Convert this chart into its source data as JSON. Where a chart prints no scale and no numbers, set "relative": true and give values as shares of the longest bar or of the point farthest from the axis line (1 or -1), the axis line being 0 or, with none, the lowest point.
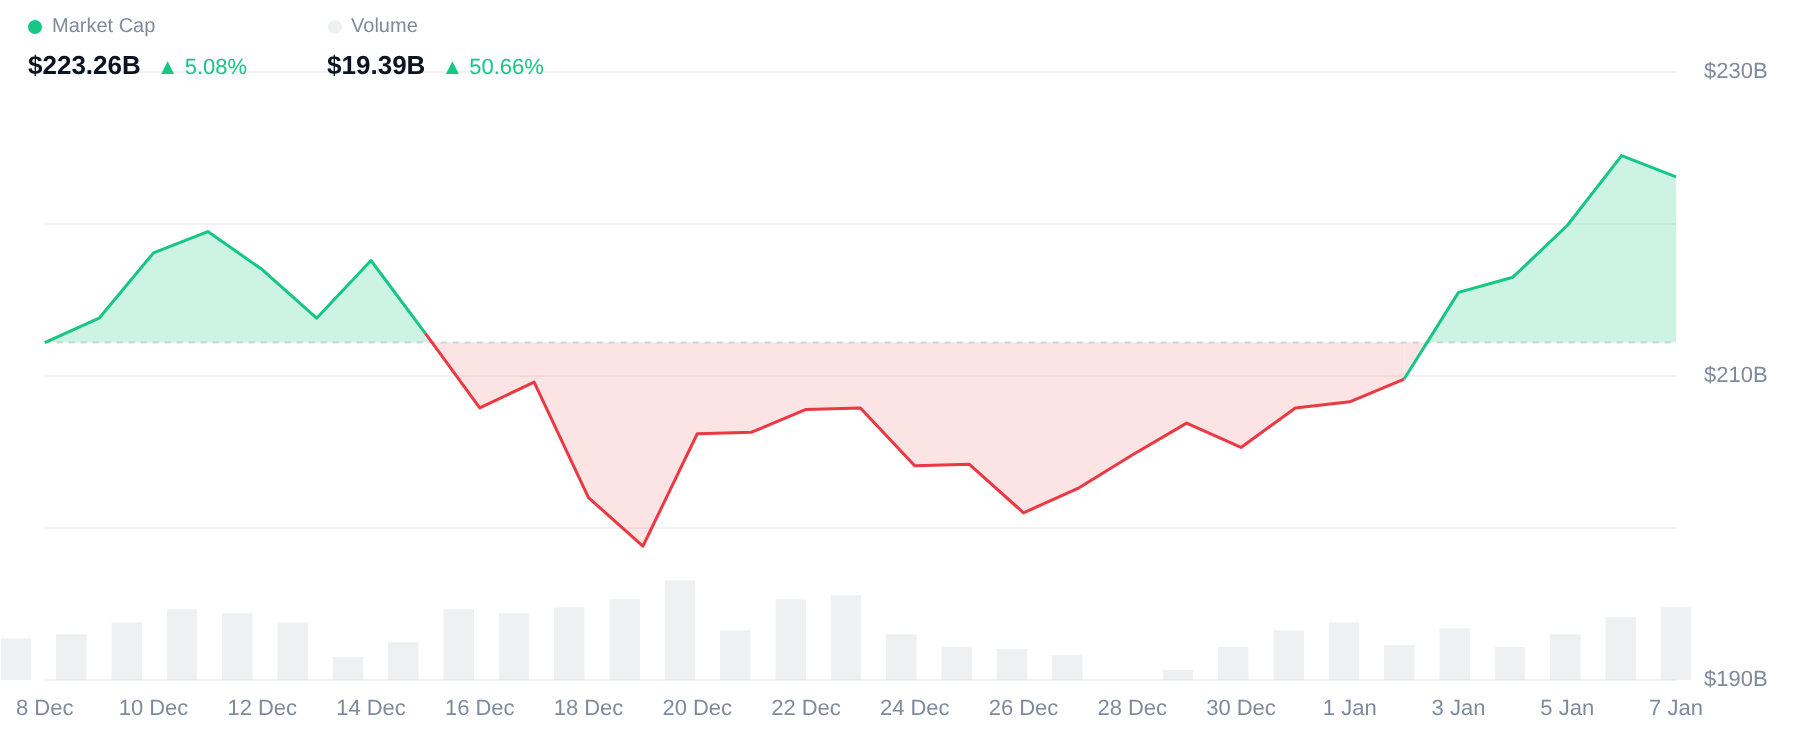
{
  "chart_data": [
    {
      "type": "area",
      "categories": [
        "8 Dec",
        null,
        "10 Dec",
        null,
        "12 Dec",
        null,
        "14 Dec",
        null,
        "16 Dec",
        null,
        "18 Dec",
        null,
        "20 Dec",
        null,
        "22 Dec",
        null,
        "24 Dec",
        null,
        "26 Dec",
        null,
        "28 Dec",
        null,
        "30 Dec",
        null,
        "1 Jan",
        null,
        "3 Jan",
        null,
        "5 Jan",
        null,
        "7 Jan"
      ],
      "series": [
        {
          "name": "Market Cap",
          "color": "#16c784",
          "colors": [
            "#16c784",
            "#16c784",
            "#16c784",
            "#16c784",
            "#16c784",
            "#16c784",
            "#16c784",
            "#16c784",
            "#ea3943",
            "#ea3943",
            "#ea3943",
            "#ea3943",
            "#ea3943",
            "#ea3943",
            "#ea3943",
            "#ea3943",
            "#ea3943",
            "#ea3943",
            "#ea3943",
            "#ea3943",
            "#ea3943",
            "#ea3943",
            "#ea3943",
            "#ea3943",
            "#ea3943",
            "#ea3943",
            "#16c784",
            "#16c784",
            "#16c784",
            "#16c784",
            "#16c784"
          ],
          "values": [
            212.2,
            213.8,
            218.1,
            219.5,
            217.0,
            213.8,
            217.6,
            212.8,
            207.9,
            209.6,
            202.0,
            198.8,
            206.2,
            206.3,
            207.8,
            207.9,
            204.1,
            204.2,
            201.0,
            202.6,
            204.8,
            206.9,
            205.3,
            207.9,
            208.3,
            209.8,
            215.5,
            216.5,
            219.9,
            224.5,
            223.1
          ]
        }
      ],
      "ylim": [
        190,
        230
      ],
      "yticks": [
        {
          "value": 190,
          "label": "$190B"
        },
        {
          "value": 200,
          "label": null
        },
        {
          "value": 210,
          "label": "$210B"
        },
        {
          "value": 220,
          "label": null
        },
        {
          "value": 230,
          "label": "$230B"
        }
      ],
      "grid": "y",
      "legend": "top left",
      "marker": "none",
      "line_style": "solid",
      "ref_lines": [
        {
          "axis": "y",
          "value": 212.2
        }
      ],
      "annotations": [
        "$223.26B",
        "▲ 5.08%"
      ]
    },
    {
      "type": "bar",
      "categories": [
        null,
        null,
        null,
        null,
        null,
        null,
        null,
        null,
        null,
        null,
        null,
        null,
        null,
        null,
        null,
        null,
        null,
        null,
        null,
        null,
        null,
        null,
        null,
        null,
        null,
        null,
        null,
        null,
        null,
        null,
        null
      ],
      "relative": true,
      "legend": "top left",
      "series": [
        {
          "name": "Volume",
          "color": "#eff0f2",
          "values": [
            0.42,
            0.46,
            0.58,
            0.71,
            0.67,
            0.58,
            0.23,
            0.38,
            0.71,
            0.67,
            0.73,
            0.81,
            1,
            0.5,
            0.81,
            0.85,
            0.46,
            0.33,
            0.31,
            0.25,
            null,
            0.1,
            0.33,
            0.5,
            0.58,
            0.35,
            0.52,
            0.33,
            0.46,
            0.63,
            0.73
          ]
        }
      ],
      "annotations": [
        "$19.39B",
        "▲ 50.66%"
      ]
    }
  ]
}
